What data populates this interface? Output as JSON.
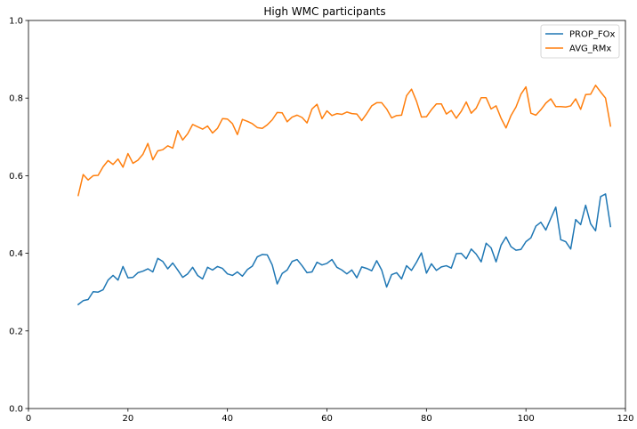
{
  "chart_data": {
    "type": "line",
    "title": "High WMC participants",
    "xlabel": "",
    "ylabel": "",
    "xlim": [
      0,
      120
    ],
    "ylim": [
      0.0,
      1.0
    ],
    "xticks": [
      0,
      20,
      40,
      60,
      80,
      100,
      120
    ],
    "yticks": [
      0.0,
      0.2,
      0.4,
      0.6,
      0.8,
      1.0
    ],
    "xtick_labels": [
      "0",
      "20",
      "40",
      "60",
      "80",
      "100",
      "120"
    ],
    "ytick_labels": [
      "0.0",
      "0.2",
      "0.4",
      "0.6",
      "0.8",
      "1.0"
    ],
    "grid": false,
    "legend_position": "top-right",
    "x": [
      10,
      11,
      12,
      13,
      14,
      15,
      16,
      17,
      18,
      19,
      20,
      21,
      22,
      23,
      24,
      25,
      26,
      27,
      28,
      29,
      30,
      31,
      32,
      33,
      34,
      35,
      36,
      37,
      38,
      39,
      40,
      41,
      42,
      43,
      44,
      45,
      46,
      47,
      48,
      49,
      50,
      51,
      52,
      53,
      54,
      55,
      56,
      57,
      58,
      59,
      60,
      61,
      62,
      63,
      64,
      65,
      66,
      67,
      68,
      69,
      70,
      71,
      72,
      73,
      74,
      75,
      76,
      77,
      78,
      79,
      80,
      81,
      82,
      83,
      84,
      85,
      86,
      87,
      88,
      89,
      90,
      91,
      92,
      93,
      94,
      95,
      96,
      97,
      98,
      99,
      100,
      101,
      102,
      103,
      104,
      105,
      106,
      107,
      108,
      109,
      110,
      111,
      112,
      113,
      114,
      115,
      116,
      117
    ],
    "series": [
      {
        "name": "PROP_FOx",
        "color": "#1f77b4",
        "values": [
          0.268,
          0.278,
          0.281,
          0.301,
          0.3,
          0.306,
          0.331,
          0.343,
          0.331,
          0.366,
          0.337,
          0.338,
          0.35,
          0.354,
          0.36,
          0.352,
          0.387,
          0.379,
          0.36,
          0.375,
          0.357,
          0.338,
          0.347,
          0.364,
          0.343,
          0.334,
          0.364,
          0.357,
          0.366,
          0.361,
          0.347,
          0.343,
          0.352,
          0.341,
          0.358,
          0.367,
          0.391,
          0.397,
          0.396,
          0.37,
          0.321,
          0.348,
          0.357,
          0.379,
          0.384,
          0.368,
          0.35,
          0.352,
          0.377,
          0.37,
          0.374,
          0.384,
          0.364,
          0.357,
          0.347,
          0.357,
          0.337,
          0.365,
          0.361,
          0.355,
          0.381,
          0.357,
          0.313,
          0.345,
          0.35,
          0.334,
          0.368,
          0.356,
          0.377,
          0.401,
          0.349,
          0.373,
          0.356,
          0.365,
          0.368,
          0.362,
          0.399,
          0.4,
          0.386,
          0.411,
          0.398,
          0.378,
          0.426,
          0.414,
          0.378,
          0.421,
          0.442,
          0.417,
          0.408,
          0.41,
          0.43,
          0.44,
          0.47,
          0.48,
          0.46,
          0.49,
          0.519,
          0.435,
          0.43,
          0.411,
          0.487,
          0.474,
          0.524,
          0.476,
          0.458,
          0.546,
          0.553,
          0.469
        ]
      },
      {
        "name": "AVG_RMx",
        "color": "#ff7f0e",
        "values": [
          0.549,
          0.603,
          0.589,
          0.6,
          0.601,
          0.623,
          0.639,
          0.629,
          0.643,
          0.622,
          0.657,
          0.632,
          0.64,
          0.655,
          0.683,
          0.641,
          0.664,
          0.667,
          0.677,
          0.671,
          0.716,
          0.692,
          0.708,
          0.732,
          0.726,
          0.72,
          0.728,
          0.71,
          0.722,
          0.747,
          0.746,
          0.734,
          0.706,
          0.745,
          0.74,
          0.734,
          0.724,
          0.722,
          0.731,
          0.744,
          0.763,
          0.762,
          0.739,
          0.751,
          0.756,
          0.75,
          0.736,
          0.772,
          0.784,
          0.747,
          0.767,
          0.755,
          0.76,
          0.758,
          0.764,
          0.76,
          0.759,
          0.742,
          0.76,
          0.78,
          0.788,
          0.788,
          0.772,
          0.749,
          0.755,
          0.756,
          0.806,
          0.823,
          0.792,
          0.751,
          0.752,
          0.77,
          0.785,
          0.785,
          0.759,
          0.768,
          0.748,
          0.766,
          0.79,
          0.761,
          0.774,
          0.801,
          0.801,
          0.772,
          0.78,
          0.748,
          0.723,
          0.755,
          0.777,
          0.81,
          0.829,
          0.761,
          0.756,
          0.77,
          0.787,
          0.798,
          0.778,
          0.778,
          0.777,
          0.78,
          0.798,
          0.771,
          0.809,
          0.81,
          0.833,
          0.816,
          0.8,
          0.728
        ]
      }
    ]
  }
}
